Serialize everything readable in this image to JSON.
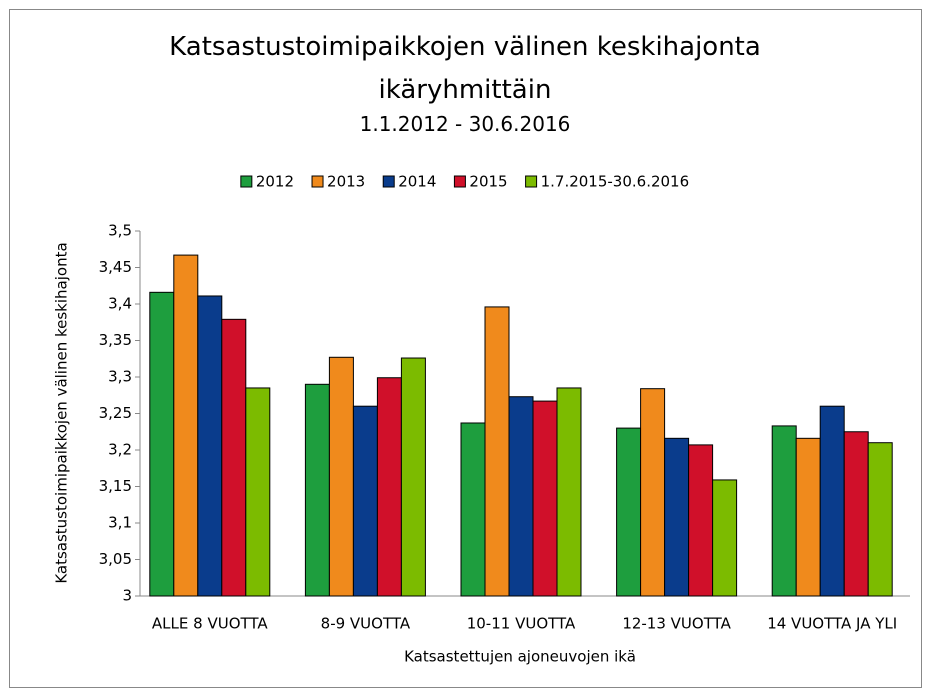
{
  "chart_data": {
    "type": "bar",
    "title": "Katsastustoimipaikkojen välinen keskihajonta ikäryhmittäin",
    "subtitle": "1.1.2012 - 30.6.2016",
    "x_label": "Katsastettujen ajoneuvojen ikä",
    "y_label": "Katsastustoimipaikkojen välinen keskihajonta",
    "categories": [
      "ALLE 8 VUOTTA",
      "8-9 VUOTTA",
      "10-11 VUOTTA",
      "12-13 VUOTTA",
      "14 VUOTTA JA YLI"
    ],
    "series": [
      {
        "name": "2012",
        "color": "#1e9e3e",
        "values": [
          3.416,
          3.29,
          3.237,
          3.23,
          3.233
        ]
      },
      {
        "name": "2013",
        "color": "#f08a1c",
        "values": [
          3.467,
          3.327,
          3.396,
          3.284,
          3.216
        ]
      },
      {
        "name": "2014",
        "color": "#0a3c8c",
        "values": [
          3.411,
          3.26,
          3.273,
          3.216,
          3.26
        ]
      },
      {
        "name": "2015",
        "color": "#d0102a",
        "values": [
          3.379,
          3.299,
          3.267,
          3.207,
          3.225
        ]
      },
      {
        "name": "1.7.2015-30.6.2016",
        "color": "#7cbb00",
        "values": [
          3.285,
          3.326,
          3.285,
          3.159,
          3.21
        ]
      }
    ],
    "ylim": [
      3,
      3.5
    ],
    "yticks": [
      3,
      {
        "value": 3.05,
        "label": "3,05"
      },
      {
        "value": 3.1,
        "label": "3,1"
      },
      {
        "value": 3.15,
        "label": "3,15"
      },
      {
        "value": 3.2,
        "label": "3,2"
      },
      {
        "value": 3.25,
        "label": "3,25"
      },
      {
        "value": 3.3,
        "label": "3,3"
      },
      {
        "value": 3.35,
        "label": "3,35"
      },
      {
        "value": 3.4,
        "label": "3,4"
      },
      {
        "value": 3.45,
        "label": "3,45"
      },
      {
        "value": 3.5,
        "label": "3,5"
      }
    ],
    "grid": false,
    "legend": "top"
  }
}
